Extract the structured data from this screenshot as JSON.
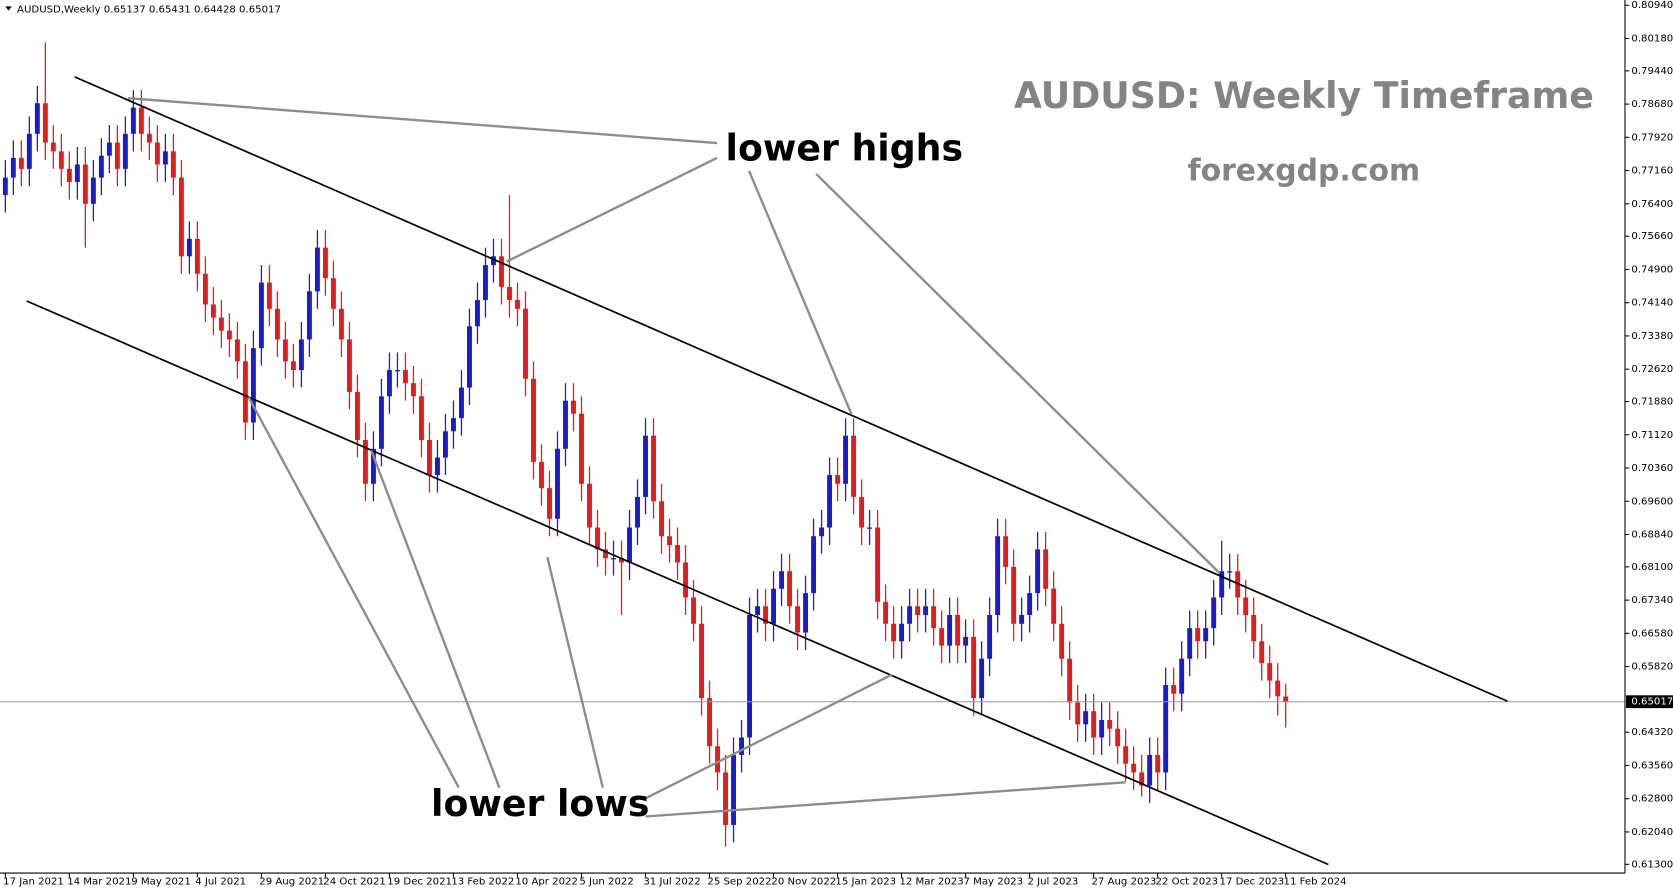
{
  "chart_data": {
    "type": "candlestick",
    "title": "AUDUSD,Weekly",
    "annotations": {
      "headline": "AUDUSD: Weekly Timeframe",
      "site": "forexgdp.com",
      "highs": "lower highs",
      "lows": "lower lows"
    },
    "up_color": "#1c1cc8",
    "down_color": "#e01e1e",
    "current_line_color": "#8a9bb0",
    "ylim": [
      0.611,
      0.8106
    ],
    "yticks": [
      {
        "value": 0.8094,
        "label": "0.80940"
      },
      {
        "value": 0.8018,
        "label": "0.80180"
      },
      {
        "value": 0.7944,
        "label": "0.79440"
      },
      {
        "value": 0.7868,
        "label": "0.78680"
      },
      {
        "value": 0.7792,
        "label": "0.77920"
      },
      {
        "value": 0.7716,
        "label": "0.77160"
      },
      {
        "value": 0.764,
        "label": "0.76400"
      },
      {
        "value": 0.7566,
        "label": "0.75660"
      },
      {
        "value": 0.749,
        "label": "0.74900"
      },
      {
        "value": 0.7414,
        "label": "0.74140"
      },
      {
        "value": 0.7338,
        "label": "0.73380"
      },
      {
        "value": 0.7262,
        "label": "0.72620"
      },
      {
        "value": 0.7188,
        "label": "0.71880"
      },
      {
        "value": 0.7112,
        "label": "0.71120"
      },
      {
        "value": 0.7036,
        "label": "0.70360"
      },
      {
        "value": 0.696,
        "label": "0.69600"
      },
      {
        "value": 0.6884,
        "label": "0.68840"
      },
      {
        "value": 0.681,
        "label": "0.68100"
      },
      {
        "value": 0.6734,
        "label": "0.67340"
      },
      {
        "value": 0.6658,
        "label": "0.66580"
      },
      {
        "value": 0.6582,
        "label": "0.65820"
      },
      {
        "value": 0.6432,
        "label": "0.64320"
      },
      {
        "value": 0.6356,
        "label": "0.63560"
      },
      {
        "value": 0.628,
        "label": "0.62800"
      },
      {
        "value": 0.6204,
        "label": "0.62040"
      },
      {
        "value": 0.613,
        "label": "0.61300"
      }
    ],
    "categories": [
      "17 Jan 2021",
      null,
      null,
      null,
      null,
      null,
      null,
      null,
      "14 Mar 2021",
      null,
      null,
      null,
      null,
      null,
      null,
      null,
      "9 May 2021",
      null,
      null,
      null,
      null,
      null,
      null,
      null,
      "4 Jul 2021",
      null,
      null,
      null,
      null,
      null,
      null,
      null,
      "29 Aug 2021",
      null,
      null,
      null,
      null,
      null,
      null,
      null,
      "24 Oct 2021",
      null,
      null,
      null,
      null,
      null,
      null,
      null,
      "19 Dec 2021",
      null,
      null,
      null,
      null,
      null,
      null,
      null,
      "13 Feb 2022",
      null,
      null,
      null,
      null,
      null,
      null,
      null,
      "10 Apr 2022",
      null,
      null,
      null,
      null,
      null,
      null,
      null,
      "5 Jun 2022",
      null,
      null,
      null,
      null,
      null,
      null,
      null,
      "31 Jul 2022",
      null,
      null,
      null,
      null,
      null,
      null,
      null,
      "25 Sep 2022",
      null,
      null,
      null,
      null,
      null,
      null,
      null,
      "20 Nov 2022",
      null,
      null,
      null,
      null,
      null,
      null,
      null,
      "15 Jan 2023",
      null,
      null,
      null,
      null,
      null,
      null,
      null,
      "12 Mar 2023",
      null,
      null,
      null,
      null,
      null,
      null,
      null,
      "7 May 2023",
      null,
      null,
      null,
      null,
      null,
      null,
      null,
      "2 Jul 2023",
      null,
      null,
      null,
      null,
      null,
      null,
      null,
      "27 Aug 2023",
      null,
      null,
      null,
      null,
      null,
      null,
      null,
      "22 Oct 2023",
      null,
      null,
      null,
      null,
      null,
      null,
      null,
      "17 Dec 2023",
      null,
      null,
      null,
      null,
      null,
      null,
      null,
      "11 Feb 2024"
    ],
    "open": [
      0.766,
      0.77,
      0.7745,
      0.772,
      0.78,
      0.787,
      0.778,
      0.776,
      0.772,
      0.769,
      0.773,
      0.764,
      0.77,
      0.775,
      0.778,
      0.772,
      0.78,
      0.786,
      0.78,
      0.778,
      0.773,
      0.776,
      0.77,
      0.752,
      0.756,
      0.748,
      0.741,
      0.738,
      0.735,
      0.733,
      0.728,
      0.714,
      0.731,
      0.746,
      0.74,
      0.733,
      0.728,
      0.726,
      0.733,
      0.744,
      0.754,
      0.747,
      0.74,
      0.733,
      0.721,
      0.71,
      0.7,
      0.708,
      0.72,
      0.726,
      0.726,
      0.723,
      0.72,
      0.71,
      0.702,
      0.706,
      0.712,
      0.715,
      0.722,
      0.736,
      0.742,
      0.75,
      0.752,
      0.745,
      0.742,
      0.74,
      0.724,
      0.705,
      0.699,
      0.692,
      0.708,
      0.719,
      0.716,
      0.7,
      0.69,
      0.685,
      0.683,
      0.683,
      0.682,
      0.69,
      0.697,
      0.711,
      0.696,
      0.688,
      0.686,
      0.682,
      0.674,
      0.668,
      0.651,
      0.64,
      0.634,
      0.622,
      0.638,
      0.642,
      0.67,
      0.672,
      0.668,
      0.676,
      0.68,
      0.672,
      0.666,
      0.675,
      0.688,
      0.69,
      0.702,
      0.7,
      0.711,
      0.697,
      0.69,
      0.69,
      0.673,
      0.668,
      0.664,
      0.668,
      0.672,
      0.67,
      0.672,
      0.667,
      0.663,
      0.67,
      0.663,
      0.665,
      0.651,
      0.66,
      0.67,
      0.688,
      0.681,
      0.668,
      0.67,
      0.675,
      0.685,
      0.676,
      0.668,
      0.66,
      0.65,
      0.645,
      0.648,
      0.642,
      0.646,
      0.644,
      0.64,
      0.636,
      0.634,
      0.631,
      0.638,
      0.634,
      0.654,
      0.652,
      0.66,
      0.667,
      0.664,
      0.667,
      0.674,
      0.68,
      0.68,
      0.674,
      0.67,
      0.664,
      0.659,
      0.655,
      0.65137
    ],
    "high": [
      0.774,
      0.7785,
      0.7785,
      0.784,
      0.791,
      0.8009,
      0.782,
      0.78,
      0.776,
      0.777,
      0.777,
      0.774,
      0.779,
      0.782,
      0.782,
      0.784,
      0.79,
      0.79,
      0.784,
      0.782,
      0.78,
      0.78,
      0.774,
      0.76,
      0.76,
      0.752,
      0.745,
      0.742,
      0.739,
      0.737,
      0.732,
      0.735,
      0.75,
      0.75,
      0.744,
      0.737,
      0.732,
      0.737,
      0.748,
      0.758,
      0.758,
      0.751,
      0.744,
      0.737,
      0.725,
      0.714,
      0.712,
      0.724,
      0.73,
      0.73,
      0.73,
      0.727,
      0.724,
      0.714,
      0.71,
      0.716,
      0.719,
      0.726,
      0.74,
      0.746,
      0.754,
      0.756,
      0.756,
      0.766,
      0.746,
      0.744,
      0.728,
      0.709,
      0.703,
      0.712,
      0.723,
      0.723,
      0.72,
      0.704,
      0.694,
      0.689,
      0.687,
      0.687,
      0.694,
      0.701,
      0.715,
      0.715,
      0.7,
      0.692,
      0.69,
      0.686,
      0.678,
      0.672,
      0.655,
      0.644,
      0.638,
      0.642,
      0.646,
      0.674,
      0.676,
      0.676,
      0.68,
      0.684,
      0.684,
      0.676,
      0.679,
      0.692,
      0.694,
      0.706,
      0.706,
      0.715,
      0.715,
      0.701,
      0.694,
      0.694,
      0.677,
      0.672,
      0.672,
      0.676,
      0.676,
      0.676,
      0.676,
      0.671,
      0.674,
      0.674,
      0.669,
      0.669,
      0.664,
      0.674,
      0.692,
      0.692,
      0.685,
      0.674,
      0.679,
      0.689,
      0.689,
      0.68,
      0.672,
      0.664,
      0.654,
      0.652,
      0.652,
      0.65,
      0.65,
      0.648,
      0.644,
      0.64,
      0.638,
      0.642,
      0.642,
      0.658,
      0.658,
      0.664,
      0.671,
      0.671,
      0.671,
      0.678,
      0.687,
      0.684,
      0.684,
      0.678,
      0.674,
      0.668,
      0.663,
      0.659,
      0.65431
    ],
    "low": [
      0.762,
      0.766,
      0.768,
      0.768,
      0.776,
      0.774,
      0.772,
      0.768,
      0.765,
      0.765,
      0.754,
      0.76,
      0.766,
      0.771,
      0.768,
      0.768,
      0.776,
      0.776,
      0.774,
      0.769,
      0.769,
      0.766,
      0.748,
      0.748,
      0.744,
      0.737,
      0.734,
      0.731,
      0.729,
      0.724,
      0.71,
      0.71,
      0.727,
      0.736,
      0.729,
      0.724,
      0.722,
      0.722,
      0.729,
      0.74,
      0.743,
      0.736,
      0.729,
      0.717,
      0.706,
      0.696,
      0.696,
      0.704,
      0.716,
      0.722,
      0.719,
      0.716,
      0.706,
      0.698,
      0.698,
      0.702,
      0.708,
      0.711,
      0.718,
      0.732,
      0.738,
      0.746,
      0.741,
      0.738,
      0.736,
      0.72,
      0.701,
      0.695,
      0.688,
      0.688,
      0.704,
      0.712,
      0.696,
      0.686,
      0.681,
      0.679,
      0.679,
      0.67,
      0.678,
      0.686,
      0.693,
      0.692,
      0.684,
      0.682,
      0.678,
      0.67,
      0.664,
      0.647,
      0.636,
      0.63,
      0.617,
      0.618,
      0.634,
      0.638,
      0.666,
      0.664,
      0.664,
      0.672,
      0.668,
      0.662,
      0.662,
      0.671,
      0.684,
      0.686,
      0.696,
      0.696,
      0.693,
      0.686,
      0.686,
      0.669,
      0.664,
      0.66,
      0.66,
      0.664,
      0.666,
      0.666,
      0.663,
      0.659,
      0.659,
      0.659,
      0.659,
      0.647,
      0.647,
      0.656,
      0.666,
      0.677,
      0.664,
      0.664,
      0.666,
      0.671,
      0.672,
      0.664,
      0.656,
      0.646,
      0.641,
      0.641,
      0.638,
      0.638,
      0.64,
      0.636,
      0.632,
      0.63,
      0.6285,
      0.627,
      0.63,
      0.63,
      0.648,
      0.648,
      0.656,
      0.66,
      0.66,
      0.663,
      0.67,
      0.676,
      0.67,
      0.666,
      0.66,
      0.655,
      0.651,
      0.647,
      0.64428
    ],
    "close": [
      0.77,
      0.7745,
      0.772,
      0.78,
      0.787,
      0.778,
      0.776,
      0.772,
      0.769,
      0.773,
      0.764,
      0.77,
      0.775,
      0.778,
      0.772,
      0.78,
      0.786,
      0.78,
      0.778,
      0.773,
      0.776,
      0.77,
      0.752,
      0.756,
      0.748,
      0.741,
      0.738,
      0.735,
      0.733,
      0.728,
      0.714,
      0.731,
      0.746,
      0.74,
      0.733,
      0.728,
      0.726,
      0.733,
      0.744,
      0.754,
      0.747,
      0.74,
      0.733,
      0.721,
      0.71,
      0.7,
      0.708,
      0.72,
      0.726,
      0.726,
      0.723,
      0.72,
      0.71,
      0.702,
      0.706,
      0.712,
      0.715,
      0.722,
      0.736,
      0.742,
      0.75,
      0.752,
      0.745,
      0.742,
      0.74,
      0.724,
      0.705,
      0.699,
      0.692,
      0.708,
      0.719,
      0.716,
      0.7,
      0.69,
      0.685,
      0.683,
      0.683,
      0.682,
      0.69,
      0.697,
      0.711,
      0.696,
      0.688,
      0.686,
      0.682,
      0.674,
      0.668,
      0.651,
      0.64,
      0.634,
      0.622,
      0.638,
      0.642,
      0.67,
      0.672,
      0.668,
      0.676,
      0.68,
      0.672,
      0.666,
      0.675,
      0.688,
      0.69,
      0.702,
      0.7,
      0.711,
      0.697,
      0.69,
      0.69,
      0.673,
      0.668,
      0.664,
      0.668,
      0.672,
      0.67,
      0.672,
      0.667,
      0.663,
      0.67,
      0.663,
      0.665,
      0.651,
      0.66,
      0.67,
      0.688,
      0.681,
      0.668,
      0.67,
      0.675,
      0.685,
      0.676,
      0.668,
      0.66,
      0.65,
      0.645,
      0.648,
      0.642,
      0.646,
      0.644,
      0.64,
      0.636,
      0.634,
      0.631,
      0.638,
      0.634,
      0.654,
      0.652,
      0.66,
      0.667,
      0.664,
      0.667,
      0.674,
      0.68,
      0.68,
      0.674,
      0.67,
      0.664,
      0.659,
      0.655,
      0.6514,
      0.65017
    ]
  }
}
